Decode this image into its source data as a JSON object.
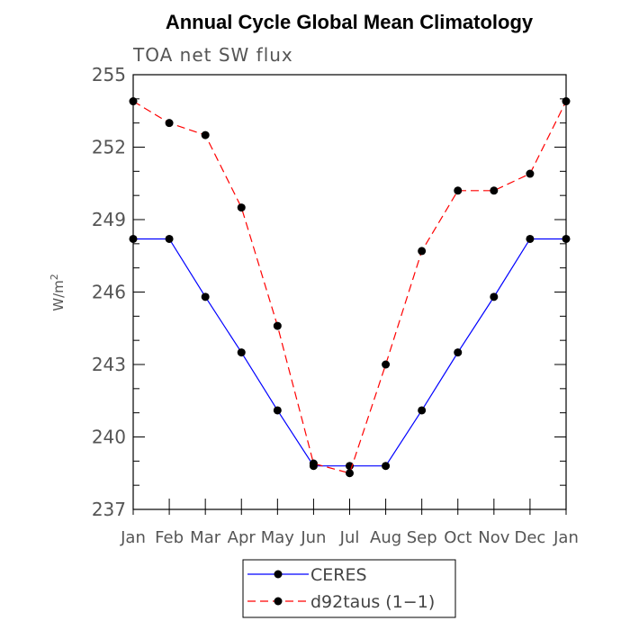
{
  "chart_data": {
    "type": "line",
    "title": "Annual Cycle Global Mean Climatology",
    "subtitle": "TOA net SW flux",
    "xlabel": "",
    "ylabel": "W/m",
    "ylabel_superscript": "2",
    "ylim": [
      237,
      255
    ],
    "yticks": [
      237,
      240,
      243,
      246,
      249,
      252,
      255
    ],
    "categories": [
      "Jan",
      "Feb",
      "Mar",
      "Apr",
      "May",
      "Jun",
      "Jul",
      "Aug",
      "Sep",
      "Oct",
      "Nov",
      "Dec",
      "Jan"
    ],
    "series": [
      {
        "name": "CERES",
        "color": "#0000ff",
        "dash": "solid",
        "values": [
          248.2,
          248.2,
          245.8,
          243.5,
          241.1,
          238.8,
          238.8,
          238.8,
          241.1,
          243.5,
          245.8,
          248.2,
          248.2
        ]
      },
      {
        "name": "d92taus (1−1)",
        "color": "#ff0000",
        "dash": "dashed",
        "values": [
          253.9,
          253.0,
          252.5,
          249.5,
          244.6,
          238.9,
          238.5,
          243.0,
          247.7,
          250.2,
          250.2,
          250.9,
          253.9
        ]
      }
    ],
    "legend_position": "bottom-center"
  }
}
